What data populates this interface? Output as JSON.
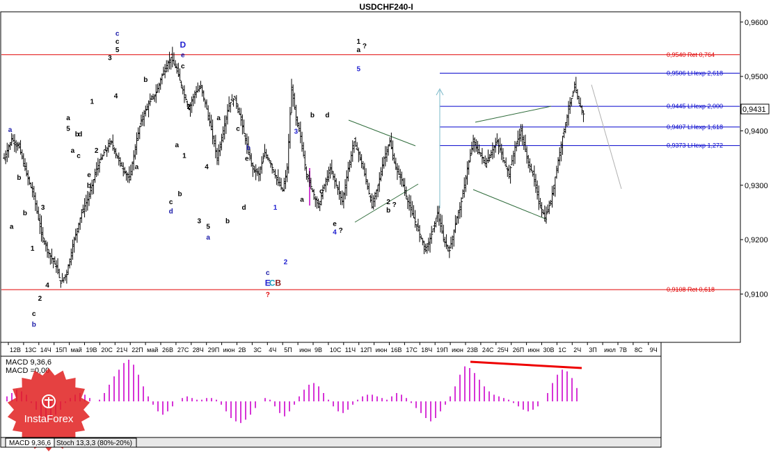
{
  "chart_data": {
    "type": "ohlc",
    "title": "USDCHF240-I",
    "y_axis": {
      "ylim": [
        0.9015,
        0.9615
      ],
      "ticks": [
        "0,9600",
        "0,9500",
        "0,9400",
        "0,9300",
        "0,9200",
        "0,9100"
      ],
      "tick_values": [
        0.96,
        0.95,
        0.94,
        0.93,
        0.92,
        0.91
      ]
    },
    "current_price": {
      "value": 0.9431,
      "label": "0,9431"
    },
    "x_axis": {
      "ticks": [
        "12В",
        "13С",
        "14Ч",
        "15П",
        "май",
        "19В",
        "20С",
        "21Ч",
        "22П",
        "май",
        "26В",
        "27С",
        "28Ч",
        "29П",
        "июн",
        "2В",
        "3С",
        "4Ч",
        "5П",
        "июн",
        "9В",
        "10С",
        "11Ч",
        "12П",
        "июн",
        "16В",
        "17С",
        "18Ч",
        "19П",
        "июн",
        "23В",
        "24С",
        "25Ч",
        "26П",
        "июн",
        "30В",
        "1С",
        "2Ч",
        "3П",
        "июл",
        "7В",
        "8С",
        "9Ч"
      ]
    },
    "price_path": [
      [
        0,
        0.935
      ],
      [
        5,
        0.9385
      ],
      [
        10,
        0.937
      ],
      [
        15,
        0.932
      ],
      [
        20,
        0.928
      ],
      [
        25,
        0.921
      ],
      [
        30,
        0.9175
      ],
      [
        35,
        0.915
      ],
      [
        38,
        0.912
      ],
      [
        42,
        0.914
      ],
      [
        47,
        0.92
      ],
      [
        52,
        0.925
      ],
      [
        57,
        0.928
      ],
      [
        62,
        0.933
      ],
      [
        67,
        0.936
      ],
      [
        72,
        0.938
      ],
      [
        76,
        0.935
      ],
      [
        80,
        0.933
      ],
      [
        84,
        0.931
      ],
      [
        88,
        0.937
      ],
      [
        92,
        0.942
      ],
      [
        97,
        0.945
      ],
      [
        102,
        0.947
      ],
      [
        107,
        0.951
      ],
      [
        112,
        0.9535
      ],
      [
        116,
        0.951
      ],
      [
        120,
        0.9475
      ],
      [
        124,
        0.944
      ],
      [
        128,
        0.947
      ],
      [
        132,
        0.948
      ],
      [
        136,
        0.944
      ],
      [
        140,
        0.939
      ],
      [
        143,
        0.935
      ],
      [
        147,
        0.94
      ],
      [
        151,
        0.945
      ],
      [
        155,
        0.946
      ],
      [
        159,
        0.942
      ],
      [
        163,
        0.937
      ],
      [
        167,
        0.933
      ],
      [
        171,
        0.932
      ],
      [
        175,
        0.936
      ],
      [
        179,
        0.934
      ],
      [
        183,
        0.931
      ],
      [
        187,
        0.929
      ],
      [
        190,
        0.933
      ],
      [
        193,
        0.948
      ],
      [
        196,
        0.942
      ],
      [
        199,
        0.939
      ],
      [
        203,
        0.932
      ],
      [
        207,
        0.929
      ],
      [
        211,
        0.926
      ],
      [
        215,
        0.93
      ],
      [
        219,
        0.933
      ],
      [
        223,
        0.93
      ],
      [
        227,
        0.927
      ],
      [
        231,
        0.933
      ],
      [
        235,
        0.938
      ],
      [
        239,
        0.935
      ],
      [
        243,
        0.931
      ],
      [
        247,
        0.926
      ],
      [
        251,
        0.93
      ],
      [
        255,
        0.935
      ],
      [
        259,
        0.938
      ],
      [
        263,
        0.933
      ],
      [
        267,
        0.931
      ],
      [
        271,
        0.927
      ],
      [
        275,
        0.924
      ],
      [
        279,
        0.921
      ],
      [
        283,
        0.918
      ],
      [
        287,
        0.921
      ],
      [
        291,
        0.925
      ],
      [
        295,
        0.92
      ],
      [
        299,
        0.918
      ],
      [
        303,
        0.923
      ],
      [
        307,
        0.927
      ],
      [
        311,
        0.933
      ],
      [
        315,
        0.938
      ],
      [
        319,
        0.936
      ],
      [
        323,
        0.934
      ],
      [
        327,
        0.936
      ],
      [
        331,
        0.938
      ],
      [
        335,
        0.935
      ],
      [
        339,
        0.932
      ],
      [
        343,
        0.937
      ],
      [
        347,
        0.94
      ],
      [
        351,
        0.935
      ],
      [
        355,
        0.932
      ],
      [
        359,
        0.927
      ],
      [
        363,
        0.924
      ],
      [
        367,
        0.927
      ],
      [
        371,
        0.933
      ],
      [
        375,
        0.939
      ],
      [
        379,
        0.944
      ],
      [
        383,
        0.948
      ],
      [
        386,
        0.945
      ],
      [
        389,
        0.9431
      ]
    ],
    "macd_series": [
      {
        "name": "MACD 9,36,6"
      },
      {
        "name": "MACD =0,00"
      }
    ],
    "macd_values": [
      0.3,
      0.5,
      0.7,
      0.6,
      0.4,
      -0.1,
      -0.5,
      -0.9,
      -1.1,
      -1.0,
      -0.8,
      -0.5,
      -0.1,
      0.2,
      0.4,
      0.5,
      0.4,
      0.2,
      0.0,
      0.1,
      0.5,
      1.0,
      1.5,
      1.9,
      2.3,
      2.5,
      2.2,
      1.6,
      0.9,
      0.3,
      -0.2,
      -0.6,
      -0.8,
      -0.6,
      -0.3,
      0.0,
      0.2,
      0.3,
      0.2,
      0.1,
      0.1,
      0.2,
      0.2,
      0.1,
      -0.2,
      -0.6,
      -1.0,
      -1.2,
      -1.3,
      -1.1,
      -0.8,
      -0.4,
      0.0,
      0.2,
      0.1,
      -0.3,
      -0.7,
      -0.9,
      -0.6,
      -0.2,
      0.3,
      0.7,
      1.0,
      1.1,
      0.9,
      0.5,
      0.1,
      -0.3,
      -0.6,
      -0.7,
      -0.5,
      -0.2,
      0.1,
      0.3,
      0.4,
      0.4,
      0.3,
      0.2,
      0.1,
      0.3,
      0.5,
      0.4,
      0.2,
      -0.1,
      -0.4,
      -0.7,
      -1.0,
      -1.2,
      -1.0,
      -0.6,
      -0.2,
      0.3,
      0.9,
      1.6,
      2.1,
      2.0,
      1.7,
      1.3,
      0.9,
      0.6,
      0.4,
      0.3,
      0.2,
      0.1,
      -0.1,
      -0.3,
      -0.5,
      -0.6,
      -0.5,
      -0.3,
      0.0,
      0.5,
      1.1,
      1.6,
      1.9,
      1.8,
      1.4,
      0.8
    ],
    "horizontal_levels": [
      {
        "value": 0.954,
        "label": "0,9540 Ret 0,764",
        "color": "#e00000"
      },
      {
        "value": 0.9506,
        "label": "0,9506 LHexp 2,618",
        "color": "#0000cc"
      },
      {
        "value": 0.9445,
        "label": "0,9445 LHexp 2,000",
        "color": "#0000cc"
      },
      {
        "value": 0.9407,
        "label": "0,9407 LHexp 1,618",
        "color": "#0000cc"
      },
      {
        "value": 0.9373,
        "label": "0,9373 LHexp 1,272",
        "color": "#0000cc"
      },
      {
        "value": 0.9108,
        "label": "0,9108 Ret 0,618",
        "color": "#e00000"
      }
    ],
    "wave_labels": [
      {
        "text": "a",
        "x": 4,
        "y": 0.9398,
        "color": "#1a1aa8"
      },
      {
        "text": "b",
        "x": 10,
        "y": 0.931,
        "color": "#000000"
      },
      {
        "text": "a",
        "x": 5,
        "y": 0.922,
        "color": "#000000"
      },
      {
        "text": "b",
        "x": 14,
        "y": 0.9245,
        "color": "#000000"
      },
      {
        "text": "1",
        "x": 19,
        "y": 0.918,
        "color": "#000000"
      },
      {
        "text": "2",
        "x": 24,
        "y": 0.9088,
        "color": "#000000"
      },
      {
        "text": "c",
        "x": 20,
        "y": 0.906,
        "color": "#000000"
      },
      {
        "text": "b",
        "x": 20,
        "y": 0.904,
        "color": "#1a1aa8"
      },
      {
        "text": "3",
        "x": 26,
        "y": 0.9255,
        "color": "#000000"
      },
      {
        "text": "4",
        "x": 29,
        "y": 0.9112,
        "color": "#000000"
      },
      {
        "text": "1",
        "x": 59,
        "y": 0.945,
        "color": "#000000"
      },
      {
        "text": "2",
        "x": 62,
        "y": 0.936,
        "color": "#000000"
      },
      {
        "text": "3",
        "x": 71,
        "y": 0.953,
        "color": "#000000"
      },
      {
        "text": "4",
        "x": 75,
        "y": 0.946,
        "color": "#000000"
      },
      {
        "text": "5",
        "x": 76,
        "y": 0.9545,
        "color": "#000000"
      },
      {
        "text": "c",
        "x": 76,
        "y": 0.956,
        "color": "#000000"
      },
      {
        "text": "c",
        "x": 76,
        "y": 0.9575,
        "color": "#1a1aa8"
      },
      {
        "text": "a",
        "x": 43,
        "y": 0.942,
        "color": "#000000"
      },
      {
        "text": "5",
        "x": 43,
        "y": 0.94,
        "color": "#000000"
      },
      {
        "text": "b",
        "x": 49,
        "y": 0.939,
        "color": "#000000"
      },
      {
        "text": "d",
        "x": 51,
        "y": 0.939,
        "color": "#000000"
      },
      {
        "text": "c",
        "x": 50,
        "y": 0.935,
        "color": "#000000"
      },
      {
        "text": "e",
        "x": 57,
        "y": 0.9315,
        "color": "#000000"
      },
      {
        "text": "a",
        "x": 46,
        "y": 0.936,
        "color": "#000000"
      },
      {
        "text": "b",
        "x": 57,
        "y": 0.9295,
        "color": "#000000"
      },
      {
        "text": "b",
        "x": 95,
        "y": 0.949,
        "color": "#000000"
      },
      {
        "text": "a",
        "x": 89,
        "y": 0.933,
        "color": "#000000"
      },
      {
        "text": "D",
        "x": 120,
        "y": 0.9553,
        "color": "#2020d0"
      },
      {
        "text": "e",
        "x": 120,
        "y": 0.9535,
        "color": "#1a1aa8"
      },
      {
        "text": "c",
        "x": 120,
        "y": 0.9515,
        "color": "#000000"
      },
      {
        "text": "2",
        "x": 124,
        "y": 0.944,
        "color": "#000000"
      },
      {
        "text": "a",
        "x": 116,
        "y": 0.937,
        "color": "#000000"
      },
      {
        "text": "1",
        "x": 121,
        "y": 0.935,
        "color": "#000000"
      },
      {
        "text": "b",
        "x": 118,
        "y": 0.928,
        "color": "#000000"
      },
      {
        "text": "c",
        "x": 112,
        "y": 0.9265,
        "color": "#000000"
      },
      {
        "text": "d",
        "x": 112,
        "y": 0.9248,
        "color": "#1a1aa8"
      },
      {
        "text": "3",
        "x": 131,
        "y": 0.923,
        "color": "#000000"
      },
      {
        "text": "4",
        "x": 136,
        "y": 0.933,
        "color": "#000000"
      },
      {
        "text": "5",
        "x": 137,
        "y": 0.922,
        "color": "#000000"
      },
      {
        "text": "a",
        "x": 137,
        "y": 0.92,
        "color": "#1a1aa8"
      },
      {
        "text": "a",
        "x": 144,
        "y": 0.942,
        "color": "#000000"
      },
      {
        "text": "c",
        "x": 157,
        "y": 0.94,
        "color": "#000000"
      },
      {
        "text": "b",
        "x": 164,
        "y": 0.9365,
        "color": "#1a1aa8"
      },
      {
        "text": "e",
        "x": 163,
        "y": 0.9345,
        "color": "#000000"
      },
      {
        "text": "d",
        "x": 161,
        "y": 0.9255,
        "color": "#000000"
      },
      {
        "text": "b",
        "x": 150,
        "y": 0.923,
        "color": "#000000"
      },
      {
        "text": "c",
        "x": 177,
        "y": 0.9135,
        "color": "#1a1aa8"
      },
      {
        "text": "E",
        "x": 177,
        "y": 0.9115,
        "color": "#2020d0"
      },
      {
        "text": "C",
        "x": 180,
        "y": 0.9115,
        "color": "#20a0c0"
      },
      {
        "text": "B",
        "x": 184,
        "y": 0.9115,
        "color": "#8b1a1a"
      },
      {
        "text": "?",
        "x": 177,
        "y": 0.9095,
        "color": "#e00000"
      },
      {
        "text": "1",
        "x": 182,
        "y": 0.9255,
        "color": "#2020d0"
      },
      {
        "text": "2",
        "x": 189,
        "y": 0.9155,
        "color": "#2020d0"
      },
      {
        "text": "3",
        "x": 196,
        "y": 0.9395,
        "color": "#2020d0"
      },
      {
        "text": "a",
        "x": 200,
        "y": 0.927,
        "color": "#000000"
      },
      {
        "text": "b",
        "x": 207,
        "y": 0.9425,
        "color": "#000000"
      },
      {
        "text": "c",
        "x": 213,
        "y": 0.9285,
        "color": "#000000"
      },
      {
        "text": "d",
        "x": 217,
        "y": 0.9425,
        "color": "#000000"
      },
      {
        "text": "e",
        "x": 222,
        "y": 0.9225,
        "color": "#000000"
      },
      {
        "text": "4",
        "x": 222,
        "y": 0.921,
        "color": "#2020d0"
      },
      {
        "text": "?",
        "x": 226,
        "y": 0.9213,
        "color": "#000000"
      },
      {
        "text": "5",
        "x": 238,
        "y": 0.951,
        "color": "#2020d0"
      },
      {
        "text": "1",
        "x": 238,
        "y": 0.956,
        "color": "#000000"
      },
      {
        "text": "a",
        "x": 238,
        "y": 0.9545,
        "color": "#000000"
      },
      {
        "text": "?",
        "x": 242,
        "y": 0.9552,
        "color": "#000000"
      },
      {
        "text": "2",
        "x": 258,
        "y": 0.9265,
        "color": "#000000"
      },
      {
        "text": "b",
        "x": 258,
        "y": 0.925,
        "color": "#000000"
      },
      {
        "text": "?",
        "x": 262,
        "y": 0.926,
        "color": "#000000"
      }
    ]
  },
  "indicator_panel": {
    "macd_label": "MACD 9,36,6",
    "macd_zero_label": "MACD =0,00"
  },
  "bottom_tabs": [
    {
      "label": "MACD 9,36,6"
    },
    {
      "label": "Stoch 13,3,3 (80%-20%)"
    }
  ],
  "watermark": {
    "text": "InstaForex"
  },
  "colors": {
    "support_red": "#e00000",
    "fib_blue": "#0000cc",
    "macd_magenta": "#cc00cc",
    "divergence_red": "#ee0000",
    "trendline_green": "#2e6b3a",
    "watermark_red": "#e02020"
  }
}
